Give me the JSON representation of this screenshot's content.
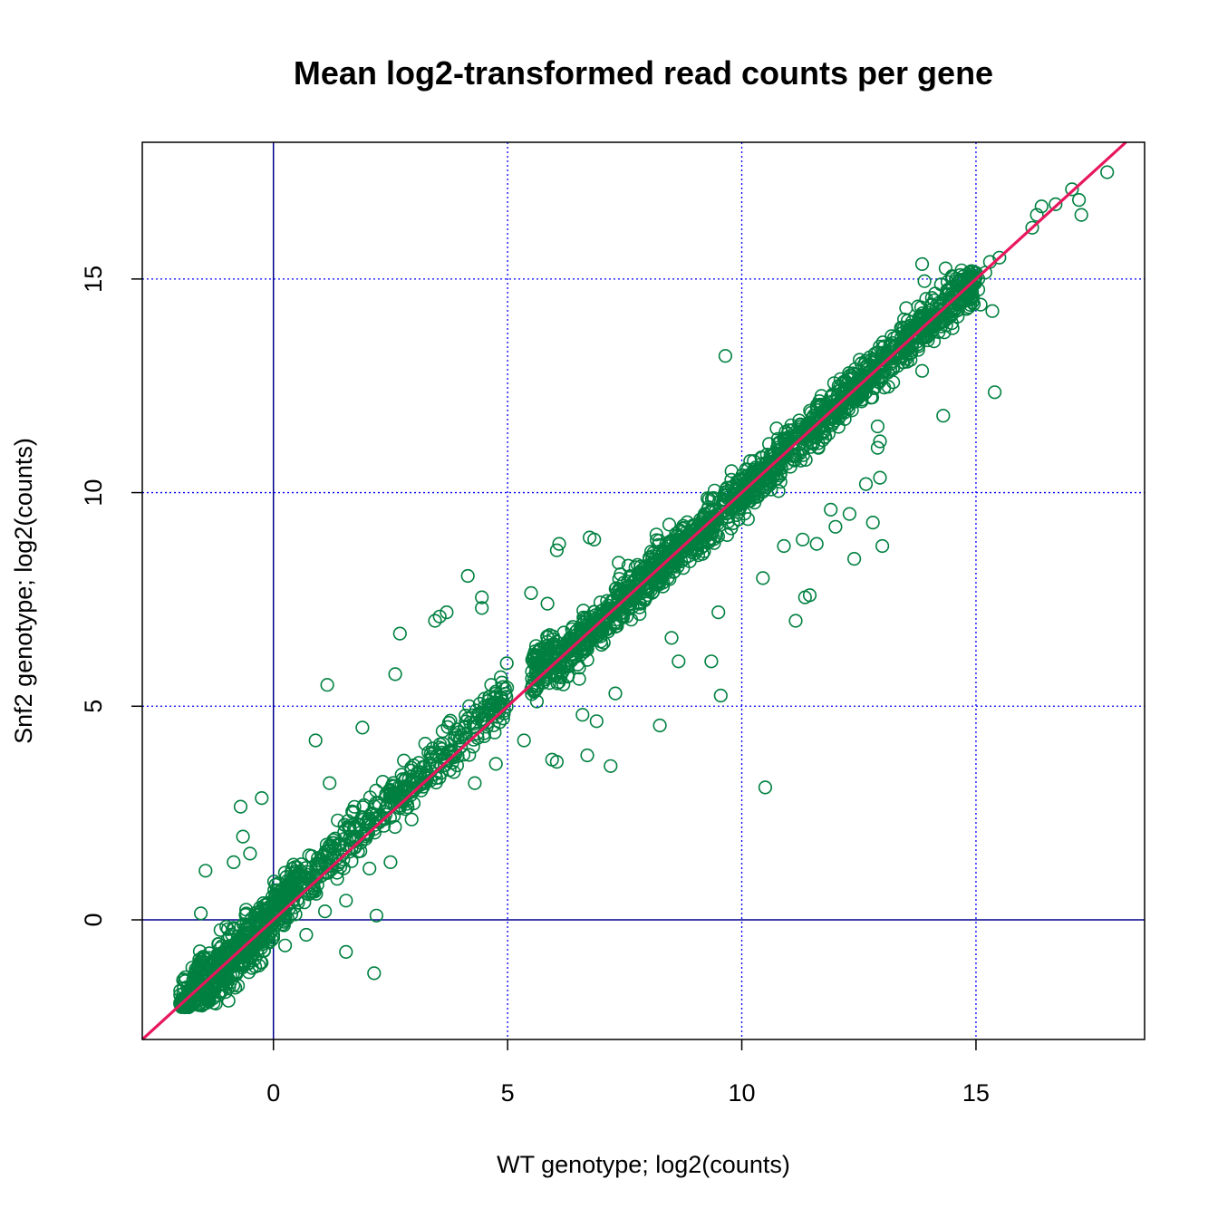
{
  "chart_data": {
    "type": "scatter",
    "title": "Mean log2-transformed read counts per gene",
    "xlabel": "WT genotype; log2(counts)",
    "ylabel": "Snf2 genotype; log2(counts)",
    "xlim": [
      -2.8,
      18.6
    ],
    "ylim": [
      -2.8,
      18.2
    ],
    "xticks": [
      0,
      5,
      10,
      15
    ],
    "yticks": [
      0,
      5,
      10,
      15
    ],
    "grid": {
      "on": true,
      "style": "dotted",
      "x_positions": [
        0,
        5,
        10,
        15
      ],
      "y_positions": [
        0,
        5,
        10,
        15
      ],
      "color": "#0000ff"
    },
    "zero_lines": {
      "color": "#00008b"
    },
    "identity_line": {
      "slope": 1,
      "intercept": 0,
      "color": "#e8175d"
    },
    "marker": {
      "shape": "open-circle",
      "color": "#008040"
    },
    "bulk": {
      "n": 2600,
      "x_range": [
        -2.0,
        15.0
      ],
      "spread": 0.28
    },
    "points": [
      {
        "x": 17.8,
        "y": 17.5
      },
      {
        "x": 17.05,
        "y": 17.1
      },
      {
        "x": 17.2,
        "y": 16.85
      },
      {
        "x": 17.25,
        "y": 16.5
      },
      {
        "x": 16.7,
        "y": 16.75
      },
      {
        "x": 16.4,
        "y": 16.7
      },
      {
        "x": 16.3,
        "y": 16.5
      },
      {
        "x": 16.2,
        "y": 16.2
      },
      {
        "x": 15.5,
        "y": 15.5
      },
      {
        "x": 15.3,
        "y": 15.4
      },
      {
        "x": 15.2,
        "y": 15.15
      },
      {
        "x": 15.05,
        "y": 15.0
      },
      {
        "x": 14.85,
        "y": 15.05
      },
      {
        "x": 15.05,
        "y": 14.75
      },
      {
        "x": 15.1,
        "y": 14.4
      },
      {
        "x": 15.35,
        "y": 14.25
      },
      {
        "x": 14.8,
        "y": 14.3
      },
      {
        "x": 13.85,
        "y": 15.35
      },
      {
        "x": 14.35,
        "y": 15.25
      },
      {
        "x": 14.5,
        "y": 15.05
      },
      {
        "x": 14.4,
        "y": 14.75
      },
      {
        "x": 13.9,
        "y": 14.95
      },
      {
        "x": 14.5,
        "y": 13.85
      },
      {
        "x": 14.6,
        "y": 14.6
      },
      {
        "x": 15.4,
        "y": 12.35
      },
      {
        "x": 14.3,
        "y": 11.8
      },
      {
        "x": 13.85,
        "y": 12.85
      },
      {
        "x": 12.9,
        "y": 11.55
      },
      {
        "x": 12.95,
        "y": 11.2
      },
      {
        "x": 12.9,
        "y": 11.05
      },
      {
        "x": 12.95,
        "y": 10.35
      },
      {
        "x": 12.65,
        "y": 10.2
      },
      {
        "x": 12.8,
        "y": 9.3
      },
      {
        "x": 13.0,
        "y": 8.75
      },
      {
        "x": 12.4,
        "y": 8.45
      },
      {
        "x": 9.65,
        "y": 13.2
      },
      {
        "x": 10.5,
        "y": 3.1
      },
      {
        "x": 11.15,
        "y": 7.0
      },
      {
        "x": 11.35,
        "y": 7.55
      },
      {
        "x": 11.45,
        "y": 7.6
      },
      {
        "x": 10.45,
        "y": 8.0
      },
      {
        "x": 11.6,
        "y": 8.8
      },
      {
        "x": 11.3,
        "y": 8.9
      },
      {
        "x": 10.9,
        "y": 8.75
      },
      {
        "x": 12.0,
        "y": 9.2
      },
      {
        "x": 11.9,
        "y": 9.6
      },
      {
        "x": 12.3,
        "y": 9.5
      },
      {
        "x": 9.55,
        "y": 5.25
      },
      {
        "x": 9.35,
        "y": 6.05
      },
      {
        "x": 8.25,
        "y": 4.55
      },
      {
        "x": 9.5,
        "y": 7.2
      },
      {
        "x": 8.5,
        "y": 6.6
      },
      {
        "x": 8.65,
        "y": 6.05
      },
      {
        "x": 7.3,
        "y": 5.3
      },
      {
        "x": 7.2,
        "y": 3.6
      },
      {
        "x": 6.7,
        "y": 3.85
      },
      {
        "x": 5.95,
        "y": 3.75
      },
      {
        "x": 6.05,
        "y": 3.7
      },
      {
        "x": 6.9,
        "y": 4.65
      },
      {
        "x": 6.6,
        "y": 4.8
      },
      {
        "x": 4.3,
        "y": 3.2
      },
      {
        "x": 4.75,
        "y": 3.65
      },
      {
        "x": 5.35,
        "y": 4.2
      },
      {
        "x": 6.75,
        "y": 8.95
      },
      {
        "x": 6.1,
        "y": 8.8
      },
      {
        "x": 6.05,
        "y": 8.65
      },
      {
        "x": 6.85,
        "y": 8.9
      },
      {
        "x": 5.85,
        "y": 7.4
      },
      {
        "x": 5.5,
        "y": 7.65
      },
      {
        "x": 4.15,
        "y": 8.05
      },
      {
        "x": 4.45,
        "y": 7.55
      },
      {
        "x": 4.45,
        "y": 7.3
      },
      {
        "x": 3.55,
        "y": 7.1
      },
      {
        "x": 3.45,
        "y": 7.0
      },
      {
        "x": 3.7,
        "y": 7.2
      },
      {
        "x": 2.7,
        "y": 6.7
      },
      {
        "x": 2.6,
        "y": 5.75
      },
      {
        "x": 1.15,
        "y": 5.5
      },
      {
        "x": 0.9,
        "y": 4.2
      },
      {
        "x": 1.9,
        "y": 4.5
      },
      {
        "x": 1.2,
        "y": 3.2
      },
      {
        "x": -0.25,
        "y": 2.85
      },
      {
        "x": -0.7,
        "y": 2.65
      },
      {
        "x": -0.65,
        "y": 1.95
      },
      {
        "x": -0.5,
        "y": 1.55
      },
      {
        "x": -0.85,
        "y": 1.35
      },
      {
        "x": -1.45,
        "y": 1.15
      },
      {
        "x": -1.55,
        "y": 0.15
      },
      {
        "x": 1.55,
        "y": -0.75
      },
      {
        "x": 2.15,
        "y": -1.25
      },
      {
        "x": 2.2,
        "y": 0.1
      },
      {
        "x": 1.1,
        "y": 0.2
      },
      {
        "x": 1.55,
        "y": 0.45
      },
      {
        "x": 2.5,
        "y": 1.35
      },
      {
        "x": 2.05,
        "y": 1.2
      },
      {
        "x": 0.7,
        "y": -0.35
      },
      {
        "x": 0.25,
        "y": -0.6
      },
      {
        "x": 3.2,
        "y": 3.2
      },
      {
        "x": 2.95,
        "y": 2.35
      }
    ]
  }
}
